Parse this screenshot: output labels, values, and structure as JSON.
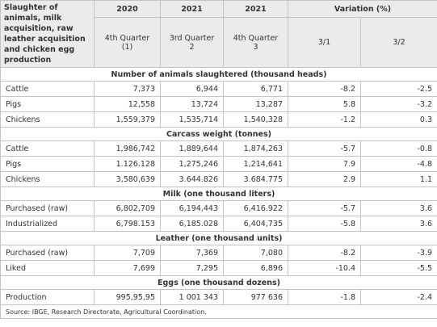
{
  "header": {
    "title": "Slaughter of animals, milk acquisition, raw leather acquisition and chicken egg production",
    "years": [
      "2020",
      "2021",
      "2021"
    ],
    "variation": "Variation (%)",
    "periods": [
      {
        "line1": "4th Quarter",
        "line2": "(1)"
      },
      {
        "line1": "3rd Quarter",
        "line2": "2"
      },
      {
        "line1": "4th Quarter",
        "line2": "3"
      }
    ],
    "ratios": [
      "3/1",
      "3/2"
    ]
  },
  "sections": [
    {
      "title": "Number of animals slaughtered (thousand heads)",
      "rows": [
        [
          "Cattle",
          "7,373",
          "6,944",
          "6,771",
          "-8.2",
          "-2.5"
        ],
        [
          "Pigs",
          "12,558",
          "13,724",
          "13,287",
          "5.8",
          "-3.2"
        ],
        [
          "Chickens",
          "1,559,379",
          "1,535,714",
          "1,540,328",
          "-1.2",
          "0.3"
        ]
      ]
    },
    {
      "title": "Carcass weight (tonnes)",
      "rows": [
        [
          "Cattle",
          "1,986,742",
          "1,889,644",
          "1,874,263",
          "-5.7",
          "-0.8"
        ],
        [
          "Pigs",
          "1.126.128",
          "1,275,246",
          "1,214,641",
          "7.9",
          "-4.8"
        ],
        [
          "Chickens",
          "3,580,639",
          "3.644.826",
          "3.684.775",
          "2.9",
          "1.1"
        ]
      ]
    },
    {
      "title": "Milk (one thousand liters)",
      "rows": [
        [
          "Purchased (raw)",
          "6,802,709",
          "6,194,443",
          "6,416.922",
          "-5.7",
          "3.6"
        ],
        [
          "Industrialized",
          "6,798.153",
          "6,185.028",
          "6,404,735",
          "-5.8",
          "3.6"
        ]
      ]
    },
    {
      "title": "Leather (one thousand units)",
      "rows": [
        [
          "Purchased (raw)",
          "7,709",
          "7,369",
          "7,080",
          "-8.2",
          "-3.9"
        ],
        [
          "Liked",
          "7,699",
          "7,295",
          "6,896",
          "-10.4",
          "-5.5"
        ]
      ]
    },
    {
      "title": "Eggs (one thousand dozens)",
      "rows": [
        [
          "Production",
          "995,95,95",
          "1 001 343",
          "977 636",
          "-1.8",
          "-2.4"
        ]
      ]
    }
  ],
  "source": "Source: IBGE, Research Directorate, Agricultural Coordination."
}
